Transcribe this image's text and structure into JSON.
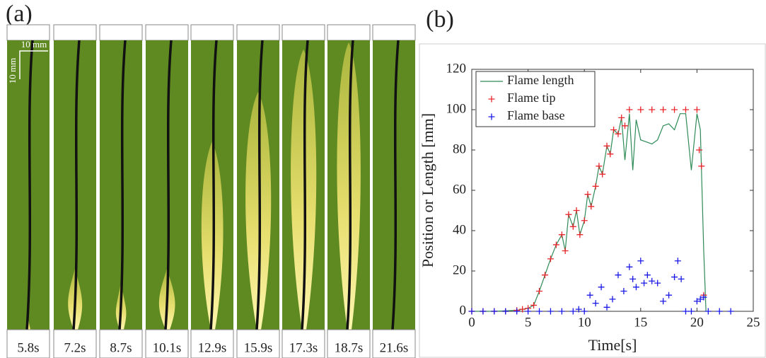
{
  "panel_a": {
    "label": "(a)",
    "scale_labels": [
      "10 mm",
      "10 mm"
    ],
    "frames": [
      "5.8s",
      "7.2s",
      "8.7s",
      "10.1s",
      "12.9s",
      "15.9s",
      "17.3s",
      "18.7s",
      "21.6s"
    ]
  },
  "chart_data": {
    "type": "line",
    "panel_label": "(b)",
    "xlabel": "Time[s]",
    "ylabel": "Position or Length [mm]",
    "xlim": [
      0,
      25
    ],
    "xticks": [
      0,
      5,
      10,
      15,
      20,
      25
    ],
    "ylim": [
      0,
      120
    ],
    "yticks": [
      0,
      20,
      40,
      60,
      80,
      100,
      120
    ],
    "legend": "upper left",
    "series": [
      {
        "name": "Flame length",
        "color": "#2e8b57",
        "mode": "line",
        "x": [
          0,
          2,
          4,
          5,
          5.5,
          6,
          6.5,
          7,
          7.5,
          8,
          8.3,
          8.6,
          9,
          9.3,
          9.6,
          10,
          10.3,
          10.6,
          11,
          11.3,
          11.6,
          12,
          12.3,
          12.6,
          13,
          13.3,
          13.6,
          14,
          14.3,
          14.6,
          15,
          15.5,
          16,
          16.5,
          17,
          17.5,
          18,
          18.5,
          19,
          19.5,
          20,
          20.3,
          20.6,
          20.8
        ],
        "values": [
          0,
          0,
          0.5,
          1.5,
          3,
          10,
          18,
          26,
          33,
          38,
          30,
          48,
          42,
          50,
          38,
          45,
          58,
          52,
          62,
          72,
          68,
          82,
          78,
          90,
          88,
          96,
          75,
          98,
          70,
          95,
          85,
          84,
          83,
          85,
          92,
          93,
          90,
          98,
          98,
          70,
          98,
          90,
          30,
          0
        ]
      },
      {
        "name": "Flame tip",
        "color": "#e8262c",
        "mode": "markers",
        "x": [
          0,
          1,
          2,
          3,
          4,
          4.5,
          5,
          5.5,
          6,
          6.5,
          7,
          7.5,
          8,
          8.3,
          8.6,
          9,
          9.3,
          9.6,
          10,
          10.3,
          10.6,
          11,
          11.3,
          11.6,
          12,
          12.3,
          12.6,
          13,
          13.3,
          13.6,
          14,
          15,
          16,
          17,
          18,
          19,
          20,
          20.2,
          20.4,
          20.6
        ],
        "values": [
          0,
          0,
          0,
          0,
          0.5,
          1,
          1.5,
          3,
          10,
          18,
          26,
          33,
          38,
          30,
          48,
          42,
          50,
          38,
          45,
          58,
          52,
          62,
          72,
          68,
          82,
          78,
          90,
          88,
          96,
          92,
          100,
          100,
          100,
          100,
          100,
          100,
          100,
          80,
          72,
          8
        ]
      },
      {
        "name": "Flame base",
        "color": "#1a1ae6",
        "mode": "markers",
        "x": [
          0,
          1,
          2,
          3,
          4,
          5,
          6,
          7,
          8,
          9,
          9.5,
          10,
          10.5,
          11,
          11.5,
          12,
          12.5,
          13,
          13.5,
          14,
          14.3,
          14.6,
          15,
          15.3,
          15.6,
          16,
          16.5,
          17,
          17.5,
          18,
          18.3,
          18.6,
          19,
          19.5,
          20,
          20.3,
          20.6,
          21,
          22,
          23
        ],
        "values": [
          0,
          0,
          0,
          0,
          0,
          0,
          0,
          0,
          0,
          0,
          1,
          0,
          8,
          4,
          12,
          2,
          6,
          18,
          10,
          22,
          16,
          12,
          25,
          14,
          18,
          15,
          14,
          5,
          8,
          17,
          25,
          16,
          0,
          0,
          5,
          6,
          7,
          0,
          0,
          0
        ]
      }
    ]
  }
}
